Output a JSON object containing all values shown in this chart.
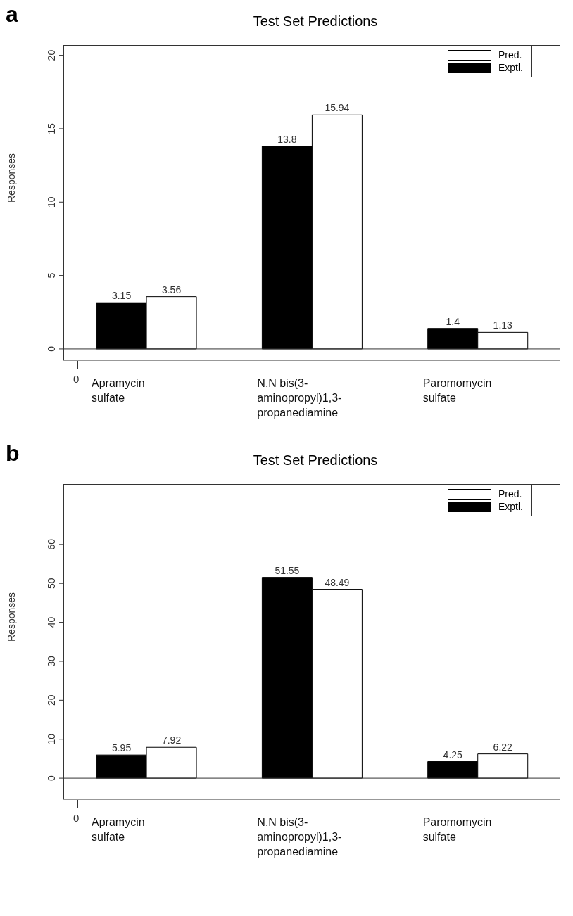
{
  "chart_data": [
    {
      "type": "bar",
      "title": "Test Set Predictions",
      "ylabel": "Responses",
      "annotations": [
        "a",
        "0"
      ],
      "categories": [
        "Apramycin\nsulfate",
        "N,N bis(3-\naminopropyl)1,3-\npropanediamine",
        "Paromomycin\nsulfate"
      ],
      "series": [
        {
          "name": "Exptl.",
          "color": "#000000",
          "values": [
            3.15,
            13.8,
            1.4
          ]
        },
        {
          "name": "Pred.",
          "color": "#ffffff",
          "values": [
            3.56,
            15.94,
            1.13
          ]
        }
      ],
      "ylim": [
        -0.77,
        20.7
      ],
      "yticks": [
        0,
        5,
        10,
        15,
        20
      ],
      "ref_lines": [
        {
          "axis": "y",
          "value": 0
        }
      ],
      "data_labels": true,
      "legend": "top right",
      "grid": false
    },
    {
      "type": "bar",
      "title": "Test Set Predictions",
      "ylabel": "Responses",
      "annotations": [
        "b",
        "0"
      ],
      "categories": [
        "Apramycin\nsulfate",
        "N,N bis(3-\naminopropyl)1,3-\npropanediamine",
        "Paromomycin\nsulfate"
      ],
      "series": [
        {
          "name": "Exptl.",
          "color": "#000000",
          "values": [
            5.95,
            51.55,
            4.25
          ]
        },
        {
          "name": "Pred.",
          "color": "#ffffff",
          "values": [
            7.92,
            48.49,
            6.22
          ]
        }
      ],
      "ylim": [
        -5.4,
        75.5
      ],
      "yticks": [
        0,
        10,
        20,
        30,
        40,
        50,
        60
      ],
      "ref_lines": [
        {
          "axis": "y",
          "value": 0
        }
      ],
      "data_labels": true,
      "legend": "top right",
      "grid": false
    }
  ]
}
